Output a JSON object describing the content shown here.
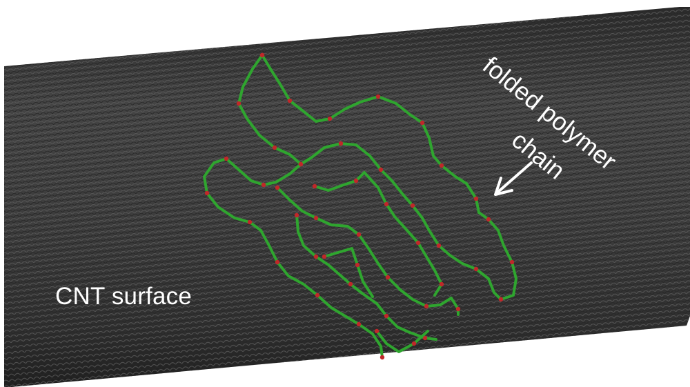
{
  "labels": {
    "cnt_surface": "CNT surface",
    "polymer_line1": "folded polymer",
    "polymer_line2": "chain"
  },
  "icons": {
    "arrow": "arrow-down-left-icon"
  },
  "colors": {
    "background": "#ffffff",
    "nanotube": "#3a3a3a",
    "nanotube_dark": "#1e1e1e",
    "polymer_bond": "#2fa52f",
    "polymer_atom": "#c0282a",
    "label_text": "#ffffff"
  }
}
